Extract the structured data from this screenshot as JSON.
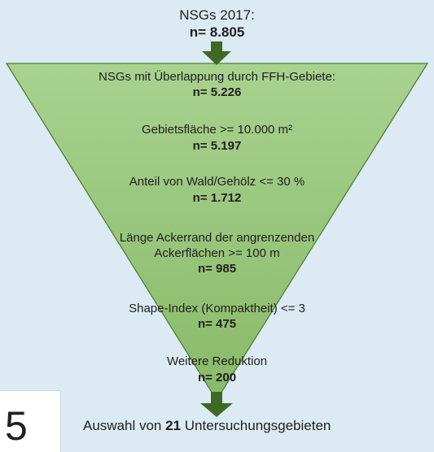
{
  "diagram": {
    "source": {
      "caption": "NSGs 2017:",
      "value": "n= 8.805"
    },
    "stages": [
      {
        "caption": "NSGs mit Überlappung durch FFH-Gebiete:",
        "value": "n= 5.226"
      },
      {
        "caption": "Gebietsfläche >= 10.000 m²",
        "value": "n= 5.197"
      },
      {
        "caption": "Anteil von Wald/Gehölz <= 30 %",
        "value": "n= 1.712"
      },
      {
        "caption_line1": "Länge Ackerrand der angrenzenden",
        "caption_line2": "Ackerflächen >= 100 m",
        "value": "n= 985"
      },
      {
        "caption": "Shape-Index (Kompaktheit) <= 3",
        "value": "n= 475"
      },
      {
        "caption": "Weitere Reduktion",
        "value": "n= 200"
      }
    ],
    "result": {
      "prefix": "Auswahl von",
      "number": "21",
      "suffix": "Untersuchungsgebieten"
    },
    "corner_number": "5",
    "colors": {
      "background": "#dcebf3",
      "funnel_top": "#a8d28f",
      "funnel_bottom": "#89ba69",
      "arrow": "#3f6a25",
      "funnel_border": "#4f7f38",
      "text": "#1f1f1f"
    }
  }
}
